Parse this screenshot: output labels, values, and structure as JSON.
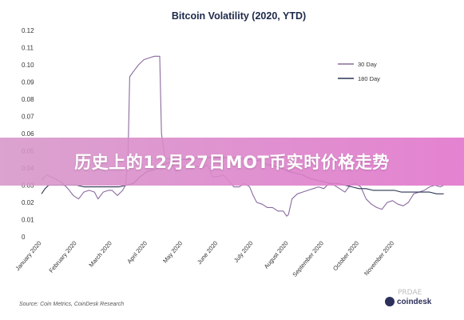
{
  "banner": {
    "text": "历史上的12月27日MOT币实时价格走势"
  },
  "source_note": "Source: Coin Metrics, CoinDesk Research",
  "logo_text": "coindesk",
  "watermark_text": "PRDAE",
  "chart_data": {
    "type": "line",
    "title": "Bitcoin Volatility (2020, YTD)",
    "xlabel": "",
    "ylabel": "",
    "ylim": [
      0,
      0.12
    ],
    "xlim": [
      0,
      11.5
    ],
    "yticks": [
      "0",
      "0.01",
      "0.02",
      "0.03",
      "0.04",
      "0.05",
      "0.06",
      "0.07",
      "0.08",
      "0.09",
      "0.10",
      "0.11",
      "0.12"
    ],
    "xticks": [
      {
        "label": "January 2020",
        "x": 0
      },
      {
        "label": "February 2020",
        "x": 1
      },
      {
        "label": "March 2020",
        "x": 2
      },
      {
        "label": "April 2020",
        "x": 3
      },
      {
        "label": "May 2020",
        "x": 4
      },
      {
        "label": "June 2020",
        "x": 5
      },
      {
        "label": "July 2020",
        "x": 6
      },
      {
        "label": "August 2020",
        "x": 7
      },
      {
        "label": "September 2020",
        "x": 8
      },
      {
        "label": "October 2020",
        "x": 9
      },
      {
        "label": "November 2020",
        "x": 10
      }
    ],
    "legend_position": "top-right",
    "series": [
      {
        "name": "30 Day",
        "color": "#8a6a9e",
        "points": [
          [
            0,
            0.033
          ],
          [
            0.15,
            0.036
          ],
          [
            0.35,
            0.034
          ],
          [
            0.55,
            0.032
          ],
          [
            0.75,
            0.028
          ],
          [
            0.9,
            0.024
          ],
          [
            1.05,
            0.022
          ],
          [
            1.2,
            0.026
          ],
          [
            1.35,
            0.027
          ],
          [
            1.5,
            0.026
          ],
          [
            1.6,
            0.022
          ],
          [
            1.75,
            0.026
          ],
          [
            1.9,
            0.027
          ],
          [
            2.0,
            0.027
          ],
          [
            2.15,
            0.024
          ],
          [
            2.3,
            0.027
          ],
          [
            2.38,
            0.03
          ],
          [
            2.45,
            0.045
          ],
          [
            2.5,
            0.093
          ],
          [
            2.6,
            0.096
          ],
          [
            2.75,
            0.1
          ],
          [
            2.9,
            0.103
          ],
          [
            3.05,
            0.104
          ],
          [
            3.2,
            0.105
          ],
          [
            3.35,
            0.105
          ],
          [
            3.4,
            0.06
          ],
          [
            3.5,
            0.046
          ],
          [
            3.65,
            0.045
          ],
          [
            3.8,
            0.038
          ],
          [
            3.95,
            0.04
          ],
          [
            4.1,
            0.041
          ],
          [
            4.25,
            0.04
          ],
          [
            4.4,
            0.041
          ],
          [
            4.55,
            0.04
          ],
          [
            4.7,
            0.042
          ],
          [
            4.85,
            0.035
          ],
          [
            5.0,
            0.035
          ],
          [
            5.15,
            0.036
          ],
          [
            5.3,
            0.033
          ],
          [
            5.45,
            0.029
          ],
          [
            5.6,
            0.029
          ],
          [
            5.75,
            0.031
          ],
          [
            5.9,
            0.029
          ],
          [
            6.0,
            0.024
          ],
          [
            6.1,
            0.02
          ],
          [
            6.25,
            0.019
          ],
          [
            6.4,
            0.017
          ],
          [
            6.55,
            0.017
          ],
          [
            6.7,
            0.015
          ],
          [
            6.85,
            0.015
          ],
          [
            6.95,
            0.012
          ],
          [
            7.0,
            0.013
          ],
          [
            7.1,
            0.022
          ],
          [
            7.25,
            0.025
          ],
          [
            7.4,
            0.026
          ],
          [
            7.55,
            0.027
          ],
          [
            7.7,
            0.028
          ],
          [
            7.85,
            0.029
          ],
          [
            8.0,
            0.028
          ],
          [
            8.15,
            0.031
          ],
          [
            8.3,
            0.03
          ],
          [
            8.45,
            0.028
          ],
          [
            8.6,
            0.026
          ],
          [
            8.75,
            0.03
          ],
          [
            8.9,
            0.031
          ],
          [
            9.05,
            0.029
          ],
          [
            9.2,
            0.022
          ],
          [
            9.35,
            0.019
          ],
          [
            9.5,
            0.017
          ],
          [
            9.65,
            0.016
          ],
          [
            9.8,
            0.02
          ],
          [
            9.95,
            0.021
          ],
          [
            10.1,
            0.019
          ],
          [
            10.25,
            0.018
          ],
          [
            10.4,
            0.02
          ],
          [
            10.55,
            0.025
          ],
          [
            10.7,
            0.026
          ],
          [
            10.85,
            0.027
          ],
          [
            11.0,
            0.029
          ],
          [
            11.15,
            0.03
          ],
          [
            11.3,
            0.029
          ],
          [
            11.4,
            0.03
          ]
        ]
      },
      {
        "name": "180 Day",
        "color": "#2a3550",
        "points": [
          [
            0,
            0.025
          ],
          [
            0.1,
            0.028
          ],
          [
            0.2,
            0.03
          ],
          [
            0.35,
            0.03
          ],
          [
            0.5,
            0.03
          ],
          [
            0.65,
            0.03
          ],
          [
            0.8,
            0.03
          ],
          [
            1.0,
            0.03
          ],
          [
            1.2,
            0.029
          ],
          [
            1.4,
            0.029
          ],
          [
            1.6,
            0.029
          ],
          [
            1.8,
            0.029
          ],
          [
            2.0,
            0.029
          ],
          [
            2.2,
            0.029
          ],
          [
            2.4,
            0.03
          ],
          [
            2.6,
            0.031
          ],
          [
            2.8,
            0.035
          ],
          [
            3.0,
            0.038
          ],
          [
            3.2,
            0.039
          ],
          [
            3.4,
            0.041
          ],
          [
            3.6,
            0.043
          ],
          [
            3.8,
            0.044
          ],
          [
            4.0,
            0.045
          ],
          [
            4.2,
            0.045
          ],
          [
            4.4,
            0.046
          ],
          [
            4.6,
            0.046
          ],
          [
            4.8,
            0.046
          ],
          [
            5.0,
            0.046
          ],
          [
            5.2,
            0.046
          ],
          [
            5.4,
            0.046
          ],
          [
            5.6,
            0.046
          ],
          [
            5.8,
            0.045
          ],
          [
            6.0,
            0.045
          ],
          [
            6.2,
            0.044
          ],
          [
            6.4,
            0.042
          ],
          [
            6.6,
            0.041
          ],
          [
            6.8,
            0.04
          ],
          [
            7.0,
            0.038
          ],
          [
            7.2,
            0.037
          ],
          [
            7.4,
            0.036
          ],
          [
            7.6,
            0.034
          ],
          [
            7.8,
            0.033
          ],
          [
            8.0,
            0.032
          ],
          [
            8.2,
            0.031
          ],
          [
            8.4,
            0.031
          ],
          [
            8.6,
            0.03
          ],
          [
            8.8,
            0.029
          ],
          [
            9.0,
            0.028
          ],
          [
            9.2,
            0.028
          ],
          [
            9.4,
            0.027
          ],
          [
            9.6,
            0.027
          ],
          [
            9.8,
            0.027
          ],
          [
            10.0,
            0.027
          ],
          [
            10.2,
            0.026
          ],
          [
            10.4,
            0.026
          ],
          [
            10.6,
            0.026
          ],
          [
            10.8,
            0.026
          ],
          [
            11.0,
            0.026
          ],
          [
            11.2,
            0.025
          ],
          [
            11.4,
            0.025
          ]
        ]
      }
    ]
  }
}
